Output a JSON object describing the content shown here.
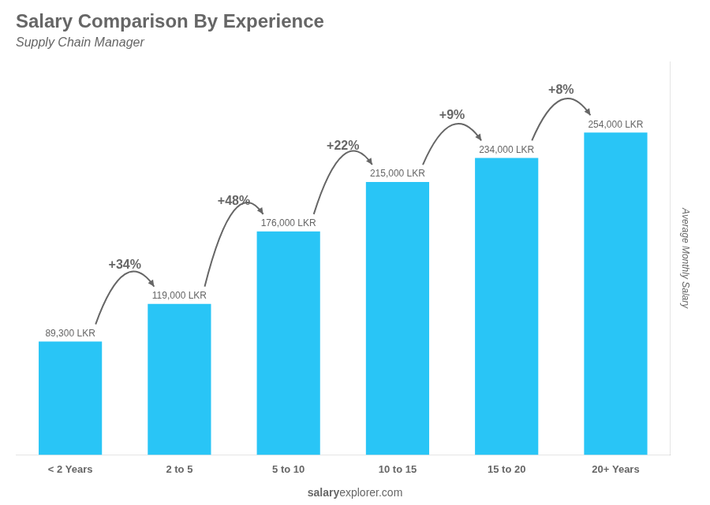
{
  "chart_data": {
    "type": "bar",
    "title": "Salary Comparison By Experience",
    "subtitle": "Supply Chain Manager",
    "ylabel": "Average Monthly Salary",
    "categories": [
      "< 2 Years",
      "2 to 5",
      "5 to 10",
      "10 to 15",
      "15 to 20",
      "20+ Years"
    ],
    "values": [
      89300,
      119000,
      176000,
      215000,
      234000,
      254000
    ],
    "value_labels": [
      "89,300 LKR",
      "119,000 LKR",
      "176,000 LKR",
      "215,000 LKR",
      "234,000 LKR",
      "254,000 LKR"
    ],
    "data_labels": true,
    "annotations": [
      "+34%",
      "+48%",
      "+22%",
      "+9%",
      "+8%"
    ],
    "footer": [
      "salary",
      "explorer.com"
    ],
    "color": "#29c5f6",
    "ylim": [
      0,
      310000
    ],
    "grid": false,
    "tick_labels": "x"
  }
}
